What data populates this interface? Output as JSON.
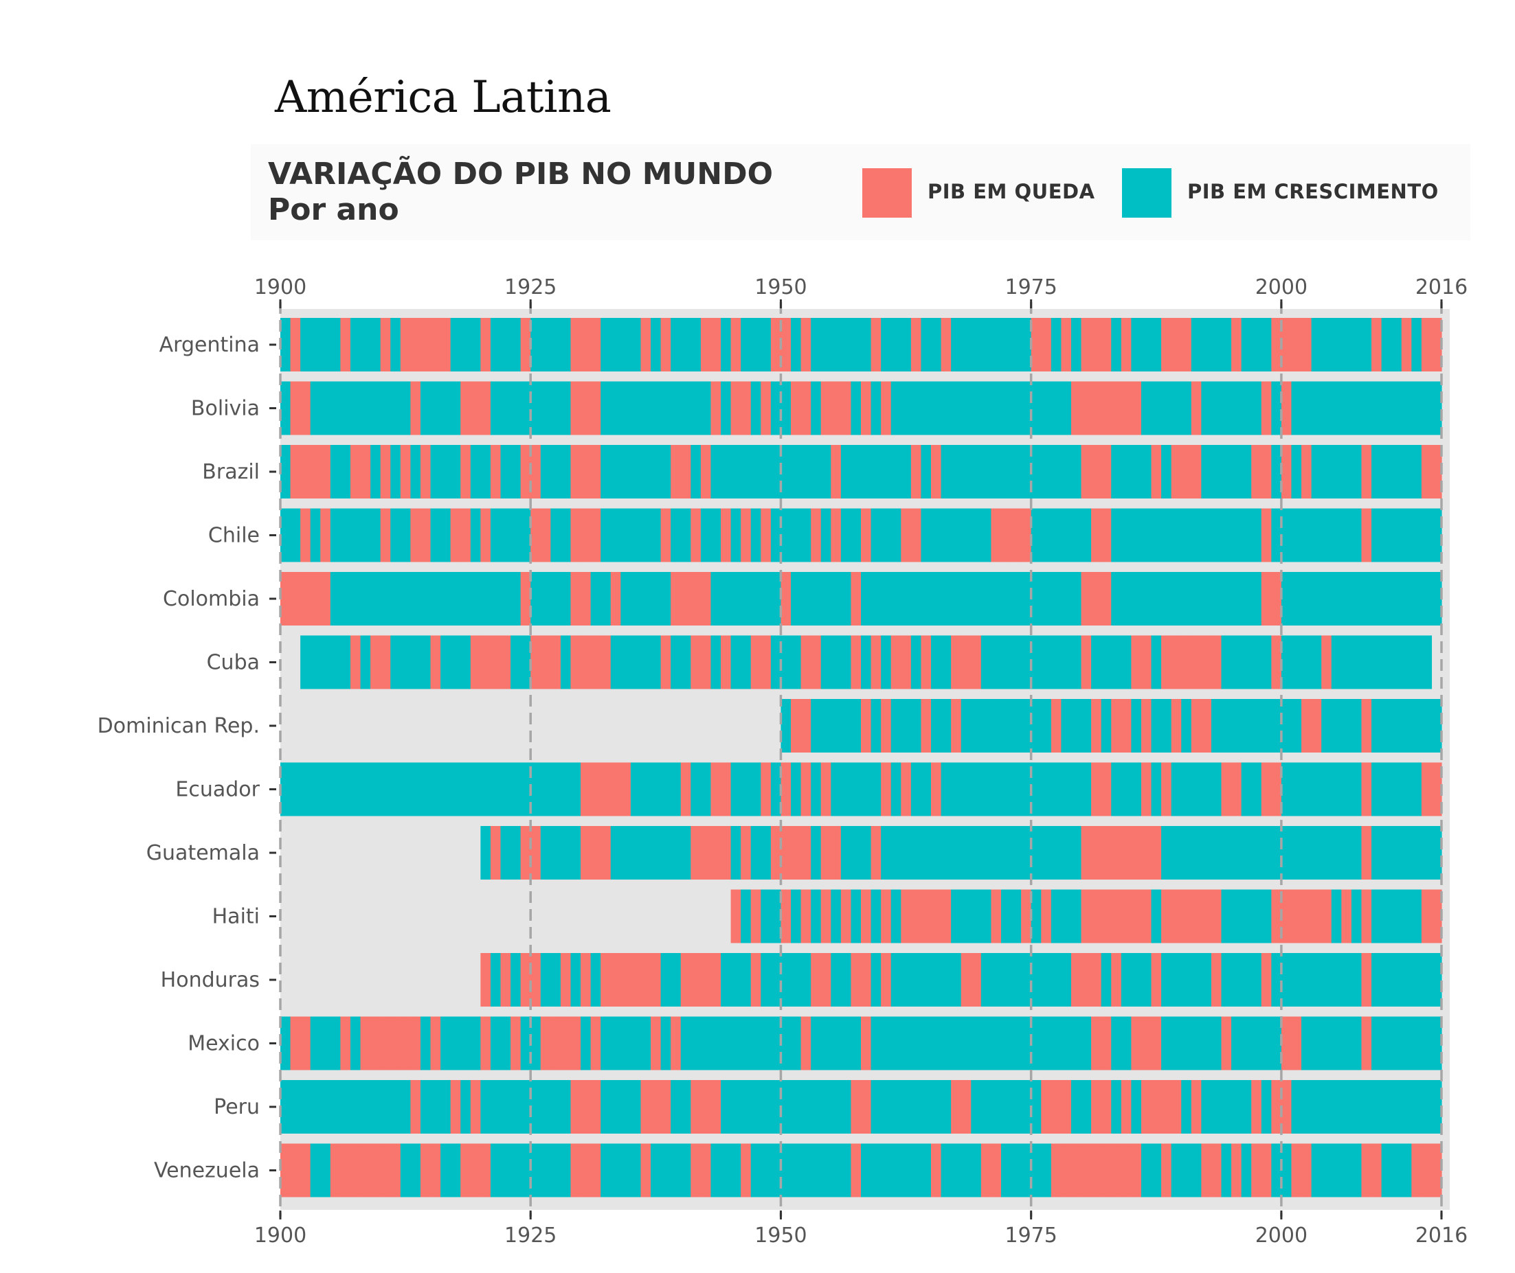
{
  "page_title": "América Latina",
  "header": {
    "title_line1": "VARIAÇÃO DO PIB NO MUNDO",
    "title_line2": "Por ano"
  },
  "legend": [
    {
      "label": "PIB EM QUEDA",
      "color": "#F8766D"
    },
    {
      "label": "PIB EM CRESCIMENTO",
      "color": "#00BFC4"
    }
  ],
  "colors": {
    "decline": "#F8766D",
    "growth": "#00BFC4",
    "panel": "#E5E5E5",
    "vline": "#A6A6A6"
  },
  "chart_data": {
    "type": "heatmap",
    "x_axis": {
      "min": 1900,
      "max": 2016,
      "ticks": [
        1900,
        1925,
        1950,
        1975,
        2000,
        2016
      ]
    },
    "reference_lines": [
      1900,
      1925,
      1950,
      1975,
      2000,
      2016
    ],
    "countries": [
      "Argentina",
      "Bolivia",
      "Brazil",
      "Chile",
      "Colombia",
      "Cuba",
      "Dominican Rep.",
      "Ecuador",
      "Guatemala",
      "Haiti",
      "Honduras",
      "Mexico",
      "Peru",
      "Venezuela"
    ],
    "series_start_year": {
      "Argentina": 1901,
      "Bolivia": 1901,
      "Brazil": 1901,
      "Chile": 1901,
      "Colombia": 1901,
      "Cuba": 1903,
      "Dominican Rep.": 1951,
      "Ecuador": 1901,
      "Guatemala": 1921,
      "Haiti": 1946,
      "Honduras": 1921,
      "Mexico": 1901,
      "Peru": 1901,
      "Venezuela": 1901
    },
    "series_end_year": {
      "Argentina": 2016,
      "Bolivia": 2016,
      "Brazil": 2016,
      "Chile": 2016,
      "Colombia": 2016,
      "Cuba": 2015,
      "Dominican Rep.": 2016,
      "Ecuador": 2016,
      "Guatemala": 2016,
      "Haiti": 2016,
      "Honduras": 2016,
      "Mexico": 2016,
      "Peru": 2016,
      "Venezuela": 2016
    },
    "decline_years": {
      "Argentina": [
        1902,
        1907,
        1911,
        1913,
        1914,
        1915,
        1916,
        1917,
        1921,
        1925,
        1930,
        1931,
        1932,
        1937,
        1939,
        1943,
        1944,
        1946,
        1950,
        1951,
        1953,
        1960,
        1964,
        1967,
        1976,
        1977,
        1979,
        1981,
        1982,
        1983,
        1985,
        1989,
        1990,
        1991,
        1996,
        2000,
        2001,
        2002,
        2003,
        2010,
        2013,
        2015,
        2016
      ],
      "Bolivia": [
        1902,
        1903,
        1914,
        1919,
        1920,
        1921,
        1930,
        1931,
        1932,
        1944,
        1946,
        1947,
        1949,
        1952,
        1953,
        1955,
        1956,
        1957,
        1959,
        1961,
        1980,
        1981,
        1982,
        1983,
        1984,
        1985,
        1986,
        1992,
        1999,
        2001
      ],
      "Brazil": [
        1902,
        1903,
        1904,
        1905,
        1908,
        1909,
        1911,
        1913,
        1915,
        1919,
        1922,
        1925,
        1926,
        1930,
        1931,
        1932,
        1940,
        1941,
        1943,
        1956,
        1964,
        1966,
        1981,
        1982,
        1983,
        1988,
        1990,
        1991,
        1992,
        1998,
        1999,
        2001,
        2003,
        2009,
        2015,
        2016
      ],
      "Chile": [
        1903,
        1905,
        1911,
        1914,
        1915,
        1918,
        1919,
        1921,
        1926,
        1927,
        1930,
        1931,
        1932,
        1939,
        1942,
        1945,
        1947,
        1949,
        1954,
        1956,
        1959,
        1963,
        1964,
        1972,
        1973,
        1974,
        1975,
        1982,
        1983,
        1999,
        2009
      ],
      "Colombia": [
        1901,
        1902,
        1903,
        1904,
        1905,
        1925,
        1930,
        1931,
        1934,
        1940,
        1941,
        1942,
        1943,
        1951,
        1958,
        1981,
        1982,
        1983,
        1999,
        2000
      ],
      "Cuba": [
        1908,
        1910,
        1911,
        1916,
        1920,
        1921,
        1922,
        1923,
        1926,
        1927,
        1928,
        1930,
        1931,
        1932,
        1933,
        1939,
        1942,
        1943,
        1945,
        1948,
        1949,
        1953,
        1954,
        1958,
        1960,
        1962,
        1963,
        1965,
        1968,
        1969,
        1970,
        1981,
        1986,
        1987,
        1989,
        1990,
        1991,
        1992,
        1993,
        1994,
        2000,
        2005
      ],
      "Dominican Rep.": [
        1952,
        1953,
        1959,
        1961,
        1965,
        1968,
        1978,
        1982,
        1984,
        1985,
        1987,
        1990,
        1992,
        1993,
        2003,
        2004,
        2009
      ],
      "Ecuador": [
        1931,
        1932,
        1933,
        1934,
        1935,
        1941,
        1944,
        1945,
        1949,
        1951,
        1953,
        1955,
        1961,
        1963,
        1966,
        1982,
        1983,
        1987,
        1989,
        1995,
        1996,
        1999,
        2000,
        2009,
        2015,
        2016
      ],
      "Guatemala": [
        1922,
        1925,
        1926,
        1931,
        1932,
        1933,
        1942,
        1943,
        1944,
        1945,
        1947,
        1950,
        1951,
        1952,
        1953,
        1955,
        1956,
        1960,
        1981,
        1982,
        1983,
        1984,
        1985,
        1986,
        1987,
        1988,
        2009
      ],
      "Haiti": [
        1946,
        1948,
        1951,
        1953,
        1955,
        1957,
        1959,
        1961,
        1963,
        1964,
        1965,
        1966,
        1967,
        1972,
        1975,
        1977,
        1981,
        1982,
        1983,
        1984,
        1985,
        1986,
        1987,
        1989,
        1990,
        1991,
        1992,
        1993,
        1994,
        2000,
        2001,
        2002,
        2003,
        2004,
        2005,
        2007,
        2009,
        2015,
        2016
      ],
      "Honduras": [
        1921,
        1923,
        1925,
        1926,
        1929,
        1931,
        1933,
        1934,
        1935,
        1936,
        1937,
        1938,
        1941,
        1942,
        1943,
        1944,
        1948,
        1954,
        1955,
        1958,
        1959,
        1961,
        1969,
        1970,
        1980,
        1981,
        1982,
        1984,
        1988,
        1994,
        1999,
        2009
      ],
      "Mexico": [
        1902,
        1903,
        1907,
        1909,
        1910,
        1911,
        1912,
        1913,
        1914,
        1916,
        1921,
        1924,
        1927,
        1928,
        1929,
        1930,
        1932,
        1938,
        1940,
        1953,
        1959,
        1982,
        1983,
        1986,
        1987,
        1988,
        1995,
        2001,
        2002,
        2009
      ],
      "Peru": [
        1914,
        1918,
        1920,
        1930,
        1931,
        1932,
        1937,
        1938,
        1939,
        1942,
        1943,
        1944,
        1958,
        1959,
        1968,
        1969,
        1977,
        1978,
        1979,
        1982,
        1983,
        1985,
        1987,
        1988,
        1989,
        1990,
        1992,
        1998,
        2000,
        2001
      ],
      "Venezuela": [
        1901,
        1902,
        1903,
        1906,
        1907,
        1908,
        1909,
        1910,
        1911,
        1912,
        1915,
        1916,
        1919,
        1920,
        1921,
        1930,
        1931,
        1932,
        1937,
        1942,
        1943,
        1947,
        1958,
        1966,
        1971,
        1972,
        1978,
        1979,
        1980,
        1981,
        1982,
        1983,
        1984,
        1985,
        1986,
        1989,
        1993,
        1994,
        1996,
        1998,
        1999,
        2002,
        2003,
        2009,
        2010,
        2014,
        2015,
        2016
      ]
    }
  }
}
